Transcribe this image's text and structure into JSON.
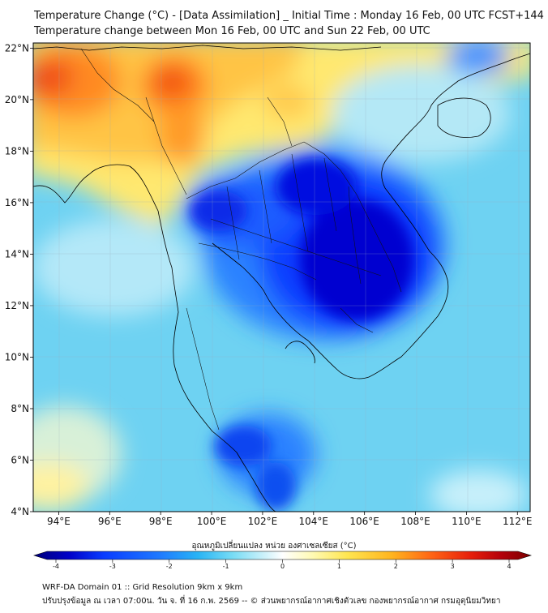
{
  "header": {
    "title": "Temperature Change (°C) - [Data Assimilation] _ Initial Time : Monday 16 Feb, 00 UTC FCST+144",
    "subtitle": "Temperature change between Mon 16 Feb, 00 UTC and Sun 22 Feb, 00 UTC"
  },
  "map": {
    "lon_range": [
      93,
      112.5
    ],
    "lat_range": [
      4,
      22.2
    ],
    "lon_ticks": [
      "94°E",
      "96°E",
      "98°E",
      "100°E",
      "102°E",
      "104°E",
      "106°E",
      "108°E",
      "110°E",
      "112°E"
    ],
    "lat_ticks": [
      "22°N",
      "20°N",
      "18°N",
      "16°N",
      "14°N",
      "12°N",
      "10°N",
      "8°N",
      "6°N",
      "4°N"
    ],
    "grid": true
  },
  "colorbar": {
    "title": "อุณหภูมิเปลี่ยนแปลง หน่วย องศาเซลเซียส (°C)",
    "min": -4,
    "max": 4,
    "ticks": [
      "-4",
      "-3",
      "-2",
      "-1",
      "0",
      "1",
      "2",
      "3",
      "4"
    ],
    "colors": [
      "#00007a",
      "#0000c8",
      "#0a3cff",
      "#1e78ff",
      "#28b4f5",
      "#78dcf5",
      "#c8f0fa",
      "#ffffff",
      "#fffab4",
      "#ffe650",
      "#ffb41e",
      "#ff6414",
      "#e61e0a",
      "#b4000a",
      "#7a0000"
    ]
  },
  "footer": {
    "line1": "WRF-DA Domain 01 :: Grid Resolution 9km x 9km",
    "line2": "ปรับปรุงข้อมูล ณ เวลา 07:00น. วัน จ. ที่ 16 ก.พ. 2569 -- © ส่วนพยากรณ์อากาศเชิงตัวเลข กองพยากรณ์อากาศ กรมอุตุนิยมวิทยา"
  }
}
